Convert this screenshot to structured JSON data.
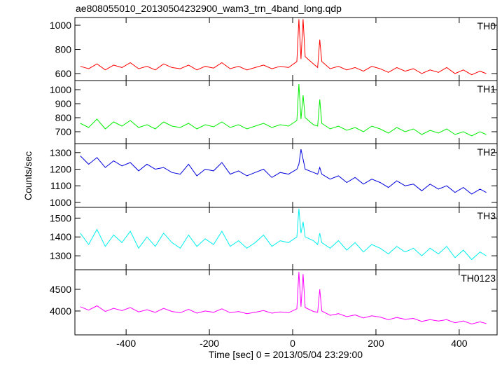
{
  "title": "ae808055010_20130504232900_wam3_trn_4band_long.qdp",
  "x_label": "Time [sec] 0 = 2013/05/04 23:29:00",
  "y_label": "Counts/sec",
  "chart_data": [
    {
      "type": "line",
      "label": "TH0",
      "color": "#ff0000",
      "xlim": [
        -523,
        491
      ],
      "xticks": [
        -400,
        -200,
        0,
        200,
        400
      ],
      "ylim": [
        542,
        1064
      ],
      "yticks": [
        600,
        800,
        1000
      ],
      "x": [
        -510,
        -490,
        -470,
        -450,
        -430,
        -410,
        -390,
        -370,
        -350,
        -330,
        -310,
        -290,
        -270,
        -250,
        -230,
        -210,
        -190,
        -170,
        -150,
        -130,
        -110,
        -90,
        -70,
        -50,
        -30,
        -10,
        10,
        15,
        20,
        25,
        30,
        50,
        60,
        65,
        70,
        90,
        110,
        130,
        150,
        170,
        190,
        210,
        230,
        250,
        270,
        290,
        310,
        330,
        350,
        370,
        390,
        410,
        430,
        450,
        465
      ],
      "values": [
        660,
        640,
        680,
        630,
        670,
        650,
        690,
        640,
        660,
        630,
        680,
        650,
        640,
        670,
        630,
        660,
        645,
        690,
        640,
        660,
        630,
        650,
        670,
        640,
        660,
        650,
        700,
        1050,
        720,
        1050,
        740,
        680,
        650,
        880,
        700,
        640,
        660,
        630,
        650,
        620,
        660,
        640,
        610,
        650,
        620,
        640,
        600,
        630,
        610,
        650,
        600,
        630,
        590,
        620,
        600
      ]
    },
    {
      "type": "line",
      "label": "TH1",
      "color": "#00ee00",
      "xlim": [
        -523,
        491
      ],
      "xticks": [
        -400,
        -200,
        0,
        200,
        400
      ],
      "ylim": [
        615,
        1065
      ],
      "yticks": [
        700,
        800,
        900,
        1000
      ],
      "x": [
        -510,
        -490,
        -470,
        -450,
        -430,
        -410,
        -390,
        -370,
        -350,
        -330,
        -310,
        -290,
        -270,
        -250,
        -230,
        -210,
        -190,
        -170,
        -150,
        -130,
        -110,
        -90,
        -70,
        -50,
        -30,
        -10,
        10,
        15,
        20,
        25,
        30,
        50,
        60,
        65,
        70,
        90,
        110,
        130,
        150,
        170,
        190,
        210,
        230,
        250,
        270,
        290,
        310,
        330,
        350,
        370,
        390,
        410,
        430,
        450,
        465
      ],
      "values": [
        760,
        730,
        790,
        720,
        770,
        740,
        780,
        730,
        750,
        720,
        770,
        740,
        730,
        760,
        720,
        750,
        735,
        770,
        730,
        750,
        720,
        740,
        760,
        730,
        750,
        740,
        780,
        1040,
        790,
        960,
        800,
        750,
        740,
        930,
        760,
        720,
        740,
        710,
        730,
        700,
        740,
        720,
        690,
        730,
        700,
        720,
        680,
        710,
        690,
        720,
        680,
        700,
        670,
        700,
        680
      ]
    },
    {
      "type": "line",
      "label": "TH2",
      "color": "#0000dd",
      "xlim": [
        -523,
        491
      ],
      "xticks": [
        -400,
        -200,
        0,
        200,
        400
      ],
      "ylim": [
        970,
        1354
      ],
      "yticks": [
        1000,
        1100,
        1200,
        1300
      ],
      "x": [
        -510,
        -490,
        -470,
        -450,
        -430,
        -410,
        -390,
        -370,
        -350,
        -330,
        -310,
        -290,
        -270,
        -250,
        -230,
        -210,
        -190,
        -170,
        -150,
        -130,
        -110,
        -90,
        -70,
        -50,
        -30,
        -10,
        10,
        15,
        20,
        25,
        30,
        50,
        60,
        65,
        70,
        90,
        110,
        130,
        150,
        170,
        190,
        210,
        230,
        250,
        270,
        290,
        310,
        330,
        350,
        370,
        390,
        410,
        430,
        450,
        465
      ],
      "values": [
        1280,
        1230,
        1270,
        1210,
        1250,
        1220,
        1240,
        1190,
        1230,
        1200,
        1210,
        1180,
        1170,
        1230,
        1160,
        1200,
        1190,
        1240,
        1170,
        1190,
        1160,
        1180,
        1200,
        1150,
        1180,
        1170,
        1200,
        1230,
        1320,
        1260,
        1200,
        1180,
        1170,
        1210,
        1170,
        1140,
        1160,
        1120,
        1150,
        1110,
        1140,
        1120,
        1090,
        1130,
        1100,
        1110,
        1070,
        1110,
        1080,
        1100,
        1060,
        1090,
        1050,
        1080,
        1060
      ]
    },
    {
      "type": "line",
      "label": "TH3",
      "color": "#00eeee",
      "xlim": [
        -523,
        491
      ],
      "xticks": [
        -400,
        -200,
        0,
        200,
        400
      ],
      "ylim": [
        1226,
        1557
      ],
      "yticks": [
        1300,
        1400,
        1500
      ],
      "x": [
        -510,
        -490,
        -470,
        -450,
        -430,
        -410,
        -390,
        -370,
        -350,
        -330,
        -310,
        -290,
        -270,
        -250,
        -230,
        -210,
        -190,
        -170,
        -150,
        -130,
        -110,
        -90,
        -70,
        -50,
        -30,
        -10,
        10,
        15,
        20,
        25,
        30,
        50,
        60,
        65,
        70,
        90,
        110,
        130,
        150,
        170,
        190,
        210,
        230,
        250,
        270,
        290,
        310,
        330,
        350,
        370,
        390,
        410,
        430,
        450,
        465
      ],
      "values": [
        1420,
        1360,
        1440,
        1350,
        1410,
        1370,
        1430,
        1340,
        1400,
        1350,
        1420,
        1370,
        1340,
        1410,
        1350,
        1390,
        1360,
        1430,
        1350,
        1380,
        1340,
        1370,
        1410,
        1350,
        1380,
        1370,
        1400,
        1550,
        1420,
        1480,
        1400,
        1380,
        1360,
        1420,
        1370,
        1340,
        1380,
        1330,
        1370,
        1320,
        1360,
        1340,
        1310,
        1350,
        1320,
        1340,
        1300,
        1340,
        1310,
        1350,
        1290,
        1330,
        1280,
        1320,
        1300
      ]
    },
    {
      "type": "line",
      "label": "TH0123",
      "color": "#ff00ff",
      "xlim": [
        -523,
        491
      ],
      "xticks": [
        -400,
        -200,
        0,
        200,
        400
      ],
      "ylim": [
        3450,
        4952
      ],
      "yticks": [
        4000,
        4500
      ],
      "x": [
        -510,
        -490,
        -470,
        -450,
        -430,
        -410,
        -390,
        -370,
        -350,
        -330,
        -310,
        -290,
        -270,
        -250,
        -230,
        -210,
        -190,
        -170,
        -150,
        -130,
        -110,
        -90,
        -70,
        -50,
        -30,
        -10,
        10,
        15,
        20,
        25,
        30,
        50,
        60,
        65,
        70,
        90,
        110,
        130,
        150,
        170,
        190,
        210,
        230,
        250,
        270,
        290,
        310,
        330,
        350,
        370,
        390,
        410,
        430,
        450,
        465
      ],
      "values": [
        4100,
        4020,
        4120,
        3990,
        4060,
        4010,
        4080,
        3980,
        4030,
        3970,
        4060,
        3990,
        3960,
        4040,
        3950,
        4000,
        3970,
        4050,
        3960,
        3990,
        3940,
        3970,
        4010,
        3950,
        3980,
        3960,
        4050,
        4900,
        4100,
        4850,
        4080,
        3990,
        3970,
        4500,
        4000,
        3900,
        3940,
        3870,
        3910,
        3840,
        3890,
        3860,
        3800,
        3850,
        3810,
        3830,
        3760,
        3800,
        3770,
        3800,
        3730,
        3770,
        3700,
        3750,
        3710
      ]
    }
  ]
}
